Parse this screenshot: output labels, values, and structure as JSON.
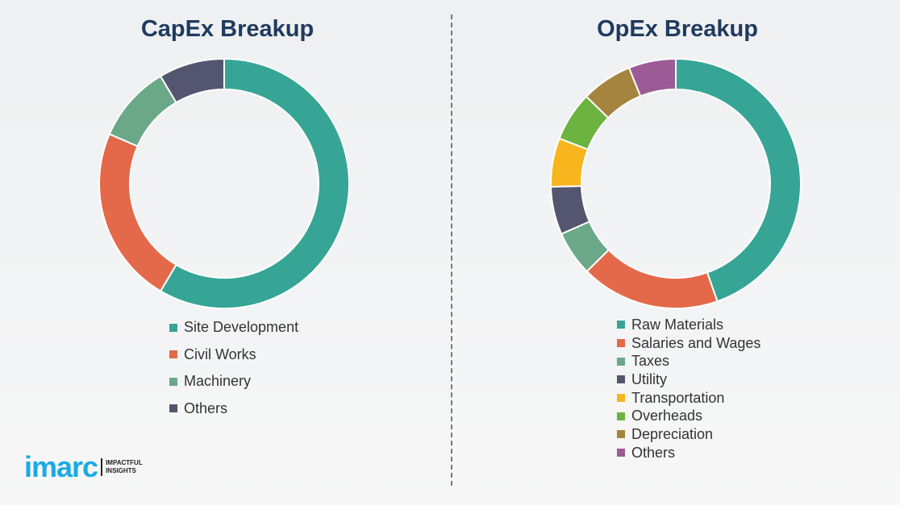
{
  "chart_data": [
    {
      "type": "pie",
      "title": "CapEx Breakup",
      "donut": true,
      "categories": [
        "Site Development",
        "Civil Works",
        "Machinery",
        "Others"
      ],
      "values": [
        58.5,
        23,
        10,
        8.5
      ],
      "colors": [
        "#36a596",
        "#e3694a",
        "#6ba888",
        "#545670"
      ],
      "legend": "bottom"
    },
    {
      "type": "pie",
      "title": "OpEx Breakup",
      "donut": true,
      "categories": [
        "Raw Materials",
        "Salaries and Wages",
        "Taxes",
        "Utility",
        "Transportation",
        "Overheads",
        "Depreciation",
        "Others"
      ],
      "values": [
        44.6,
        18,
        5.8,
        6.2,
        6.3,
        6.4,
        6.6,
        6.1
      ],
      "colors": [
        "#36a596",
        "#e3694a",
        "#6ba888",
        "#545670",
        "#f7b51e",
        "#6db33f",
        "#a4843e",
        "#9b5b96"
      ],
      "legend": "bottom"
    }
  ],
  "logo": {
    "word": "imarc",
    "tagline_1": "IMPACTFUL",
    "tagline_2": "INSIGHTS"
  }
}
